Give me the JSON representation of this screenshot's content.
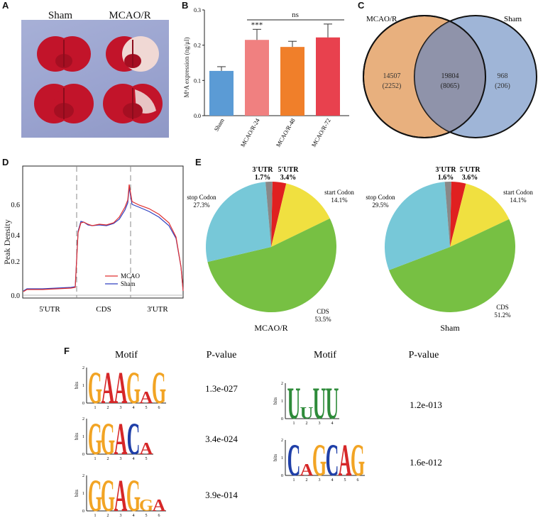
{
  "panels": [
    "A",
    "B",
    "C",
    "D",
    "E",
    "F"
  ],
  "panel_a": {
    "labels": [
      "Sham",
      "MCAO/R"
    ]
  },
  "panel_b": {
    "chart_data": {
      "type": "bar",
      "categories": [
        "Sham",
        "MCAO/R-24",
        "MCAO/R-48",
        "MCAO/R-72"
      ],
      "values": [
        0.127,
        0.215,
        0.195,
        0.222
      ],
      "errors": [
        0.012,
        0.03,
        0.016,
        0.038
      ],
      "colors": [
        "#5b9bd5",
        "#f08080",
        "#f07f2a",
        "#e8414e"
      ],
      "ylabel": "M⁶A expression (ng/μl)",
      "ylim": [
        0,
        0.3
      ],
      "yticks": [
        "0.0",
        "0.1",
        "0.2",
        "0.3"
      ],
      "significance": "***",
      "ns_label": "ns"
    }
  },
  "panel_c": {
    "left_label": "MCAO/R",
    "right_label": "Sham",
    "left_color": "#f0a030",
    "right_color": "#3a3aa0",
    "left_only": "14507",
    "left_only_sub": "(2252)",
    "overlap": "19804",
    "overlap_sub": "(8065)",
    "right_only": "968",
    "right_only_sub": "(206)"
  },
  "panel_d": {
    "chart_data": {
      "type": "line",
      "ylabel": "Peak Density",
      "yticks": [
        "0.0",
        "0.2",
        "0.4",
        "0.6"
      ],
      "ylim": [
        0,
        0.75
      ],
      "regions": [
        "5'UTR",
        "CDS",
        "3'UTR"
      ],
      "series": [
        {
          "name": "MCAO",
          "color": "#e03030"
        },
        {
          "name": "Sham",
          "color": "#3040c0"
        }
      ]
    }
  },
  "panel_e": {
    "charts": [
      {
        "title": "MCAO/R",
        "chart_data": {
          "type": "pie",
          "slices": [
            {
              "name": "5'UTR",
              "pct": "3.4%",
              "value": 3.4,
              "color": "#e02020"
            },
            {
              "name": "start Codon",
              "pct": "14.1%",
              "value": 14.1,
              "color": "#f0e040"
            },
            {
              "name": "CDS",
              "pct": "53.5%",
              "value": 53.5,
              "color": "#77c043"
            },
            {
              "name": "stop Codon",
              "pct": "27.3%",
              "value": 27.3,
              "color": "#77c8d8"
            },
            {
              "name": "3'UTR",
              "pct": "1.7%",
              "value": 1.7,
              "color": "#888888"
            }
          ]
        }
      },
      {
        "title": "Sham",
        "chart_data": {
          "type": "pie",
          "slices": [
            {
              "name": "5'UTR",
              "pct": "3.6%",
              "value": 3.6,
              "color": "#e02020"
            },
            {
              "name": "start Codon",
              "pct": "14.1%",
              "value": 14.1,
              "color": "#f0e040"
            },
            {
              "name": "CDS",
              "pct": "51.2%",
              "value": 51.2,
              "color": "#77c043"
            },
            {
              "name": "stop Codon",
              "pct": "29.5%",
              "value": 29.5,
              "color": "#77c8d8"
            },
            {
              "name": "3'UTR",
              "pct": "1.6%",
              "value": 1.6,
              "color": "#888888"
            }
          ]
        }
      }
    ]
  },
  "panel_f": {
    "motif_header": "Motif",
    "pvalue_header": "P-value",
    "axis_label": "bits",
    "left_motifs": [
      {
        "sequence": "GAAGAG",
        "pvalue": "1.3e-027"
      },
      {
        "sequence": "GGACA",
        "pvalue": "3.4e-024"
      },
      {
        "sequence": "GGAGGA",
        "pvalue": "3.9e-014"
      }
    ],
    "right_motifs": [
      {
        "sequence": "UUUU",
        "pvalue": "1.2e-013"
      },
      {
        "sequence": "CAGCAG",
        "pvalue": "1.6e-012"
      }
    ]
  }
}
